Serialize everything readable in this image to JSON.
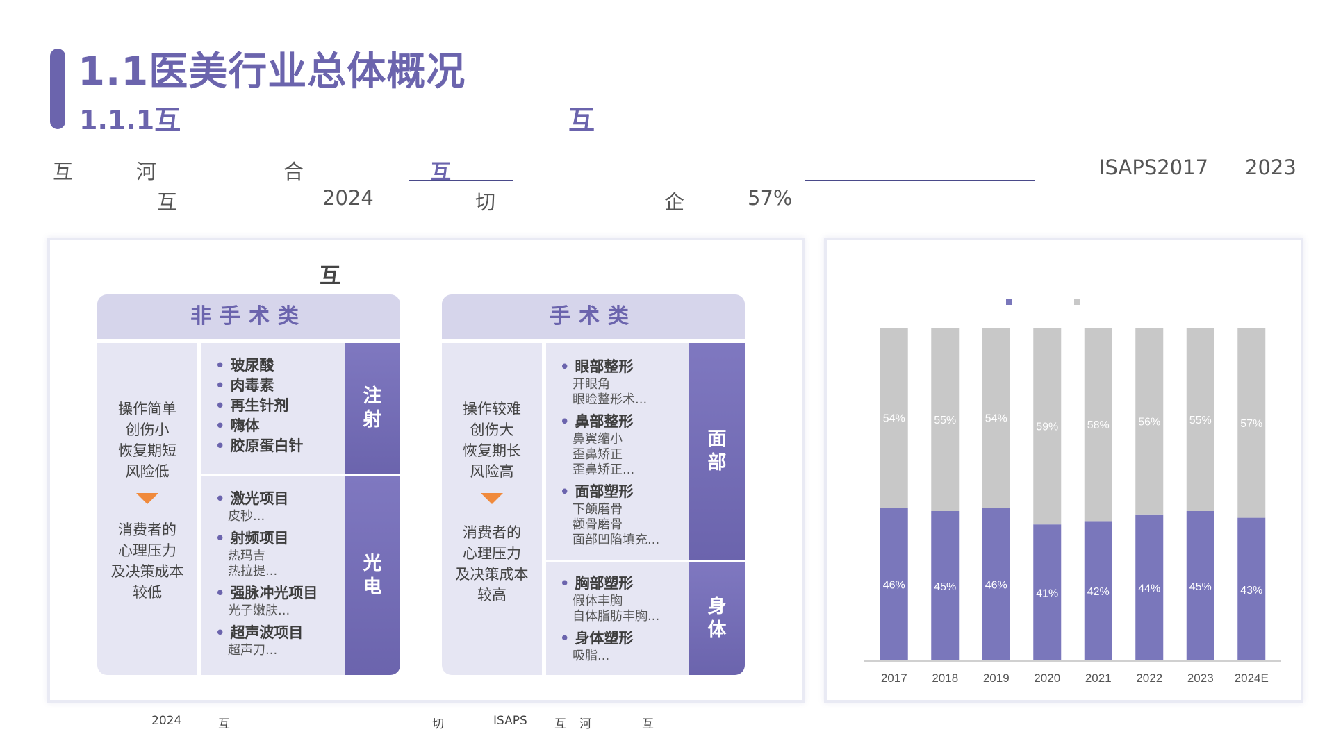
{
  "header": {
    "title": "1.1医美行业总体概况",
    "subtitle": "1.1.1互",
    "subtitle_right": "互"
  },
  "intro": {
    "line1": [
      "互",
      "河",
      "合",
      "ISAPS2017",
      "2023"
    ],
    "line1_highlight": "互",
    "line2": [
      "互",
      "2024",
      "切",
      "企",
      "57%"
    ]
  },
  "categories_panel": {
    "title": "互",
    "non_surgical": {
      "header": "非手术类",
      "features": [
        "操作简单",
        "创伤小",
        "恢复期短",
        "风险低"
      ],
      "consumer": [
        "消费者的",
        "心理压力",
        "及决策成本",
        "较低"
      ],
      "groups": [
        {
          "tag": [
            "注",
            "射"
          ],
          "items": [
            {
              "name": "玻尿酸",
              "subs": []
            },
            {
              "name": "肉毒素",
              "subs": []
            },
            {
              "name": "再生针剂",
              "subs": []
            },
            {
              "name": "嗨体",
              "subs": []
            },
            {
              "name": "胶原蛋白针",
              "subs": []
            }
          ]
        },
        {
          "tag": [
            "光",
            "电"
          ],
          "items": [
            {
              "name": "激光项目",
              "subs": [
                "皮秒..."
              ]
            },
            {
              "name": "射频项目",
              "subs": [
                "热玛吉",
                "热拉提..."
              ]
            },
            {
              "name": "强脉冲光项目",
              "subs": [
                "光子嫩肤..."
              ]
            },
            {
              "name": "超声波项目",
              "subs": [
                "超声刀..."
              ]
            }
          ]
        }
      ]
    },
    "surgical": {
      "header": "手术类",
      "features": [
        "操作较难",
        "创伤大",
        "恢复期长",
        "风险高"
      ],
      "consumer": [
        "消费者的",
        "心理压力",
        "及决策成本",
        "较高"
      ],
      "groups": [
        {
          "tag": [
            "面",
            "部"
          ],
          "items": [
            {
              "name": "眼部整形",
              "subs": [
                "开眼角",
                "眼睑整形术..."
              ]
            },
            {
              "name": "鼻部整形",
              "subs": [
                "鼻翼缩小",
                "歪鼻矫正",
                "歪鼻矫正..."
              ]
            },
            {
              "name": "面部塑形",
              "subs": [
                "下颌磨骨",
                "颧骨磨骨",
                "面部凹陷填充..."
              ]
            }
          ]
        },
        {
          "tag": [
            "身",
            "体"
          ],
          "items": [
            {
              "name": "胸部塑形",
              "subs": [
                "假体丰胸",
                "自体脂肪丰胸..."
              ]
            },
            {
              "name": "身体塑形",
              "subs": [
                "吸脂..."
              ]
            }
          ]
        }
      ]
    }
  },
  "chart_data": {
    "type": "bar",
    "stacked": true,
    "categories": [
      "2017",
      "2018",
      "2019",
      "2020",
      "2021",
      "2022",
      "2023",
      "2024E"
    ],
    "series": [
      {
        "values": [
          46,
          45,
          46,
          41,
          42,
          44,
          45,
          43
        ],
        "labels": [
          "46%",
          "45%",
          "46%",
          "41%",
          "42%",
          "44%",
          "45%",
          "43%"
        ],
        "color": "#7a77bb"
      },
      {
        "values": [
          54,
          55,
          54,
          59,
          58,
          56,
          55,
          57
        ],
        "labels": [
          "54%",
          "55%",
          "54%",
          "59%",
          "58%",
          "56%",
          "55%",
          "57%"
        ],
        "color": "#c8c8c8"
      }
    ],
    "ylim": [
      0,
      100
    ],
    "grid": false,
    "legend": "top"
  },
  "footer": [
    "2024",
    "互",
    "切",
    "ISAPS",
    "互",
    "河",
    "互"
  ],
  "colors": {
    "accent": "#6b64ad",
    "header_bg": "#d6d5eb",
    "cell_bg": "#e6e6f3",
    "arrow": "#f08a3c",
    "bar_dark": "#7a77bb",
    "bar_light": "#c8c8c8"
  }
}
